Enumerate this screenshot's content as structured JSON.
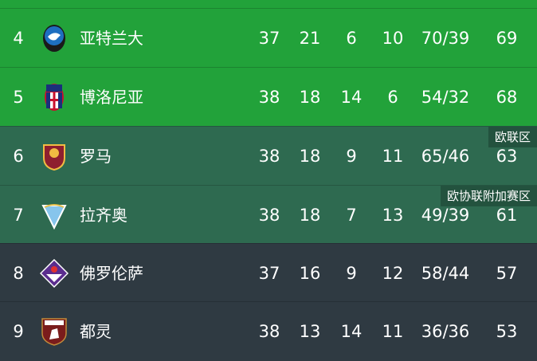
{
  "rows": [
    {
      "rank": "4",
      "team": "亚特兰大",
      "logo": "atalanta-crest-icon",
      "played": "37",
      "won": "21",
      "drawn": "6",
      "lost": "10",
      "goals": "70/39",
      "points": "69"
    },
    {
      "rank": "5",
      "team": "博洛尼亚",
      "logo": "bologna-crest-icon",
      "played": "38",
      "won": "18",
      "drawn": "14",
      "lost": "6",
      "goals": "54/32",
      "points": "68"
    },
    {
      "rank": "6",
      "team": "罗马",
      "logo": "roma-crest-icon",
      "played": "38",
      "won": "18",
      "drawn": "9",
      "lost": "11",
      "goals": "65/46",
      "points": "63"
    },
    {
      "rank": "7",
      "team": "拉齐奥",
      "logo": "lazio-crest-icon",
      "played": "38",
      "won": "18",
      "drawn": "7",
      "lost": "13",
      "goals": "49/39",
      "points": "61"
    },
    {
      "rank": "8",
      "team": "佛罗伦萨",
      "logo": "fiorentina-crest-icon",
      "played": "37",
      "won": "16",
      "drawn": "9",
      "lost": "12",
      "goals": "58/44",
      "points": "57"
    },
    {
      "rank": "9",
      "team": "都灵",
      "logo": "torino-crest-icon",
      "played": "38",
      "won": "13",
      "drawn": "14",
      "lost": "11",
      "goals": "36/36",
      "points": "53"
    }
  ],
  "zones": {
    "europa_league": "欧联区",
    "conference_playoff": "欧协联附加赛区"
  },
  "colors": {
    "champions": "#22a23a",
    "europe": "#2e6a50",
    "normal": "#2f3a42"
  }
}
